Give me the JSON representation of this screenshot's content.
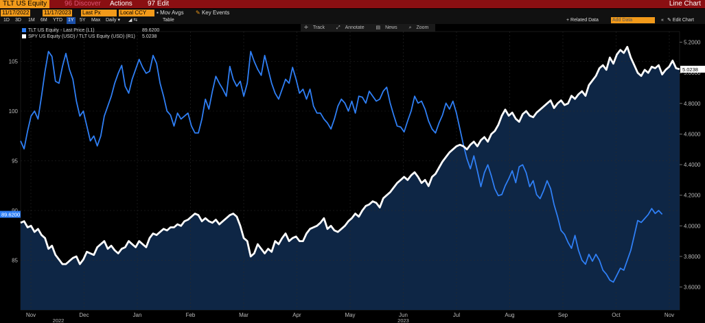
{
  "header": {
    "ticker": "TLT US Equity",
    "menus": [
      "96 Discover",
      "Actions",
      "97 Edit"
    ],
    "right_title": "Line Chart"
  },
  "controls": {
    "start_date": "11/17/2022",
    "end_date": "11/17/2023",
    "price_field": "Last Px",
    "currency": "Local CCY",
    "mov_avgs": "Mov Avgs",
    "key_events": "Key Events",
    "periods": [
      "1D",
      "3D",
      "1M",
      "6M",
      "YTD",
      "1Y",
      "5Y",
      "Max"
    ],
    "selected_period": "1Y",
    "frequency": "Daily",
    "table": "Table",
    "related_data": "+ Related Data",
    "add_data_placeholder": "Add Data",
    "edit_chart": "Edit Chart"
  },
  "toolbar": {
    "track": "Track",
    "annotate": "Annotate",
    "news": "News",
    "zoom": "Zoom"
  },
  "colors": {
    "tlt": "#2f7ff5",
    "ratio": "#ffffff",
    "area": "#0e2645",
    "background": "#000000",
    "header": "#8a0f12",
    "accent": "#f29a1a"
  },
  "chart_data": {
    "type": "line",
    "x_labels": [
      "Nov",
      "Dec",
      "Jan",
      "Feb",
      "Mar",
      "Apr",
      "May",
      "Jun",
      "Jul",
      "Aug",
      "Sep",
      "Oct",
      "Nov"
    ],
    "year_labels": [
      {
        "text": "2022",
        "month_index": 0
      },
      {
        "text": "2023",
        "month_index": 7
      }
    ],
    "left_axis": {
      "ylim": [
        80,
        108
      ],
      "ticks": [
        85,
        90,
        95,
        100,
        105
      ]
    },
    "right_axis": {
      "ylim": [
        3.45,
        5.27
      ],
      "ticks": [
        3.6,
        3.8,
        4.0,
        4.2,
        4.4,
        4.6,
        4.8,
        5.0,
        5.2
      ]
    },
    "series": [
      {
        "name": "TLT US Equity - Last Price (L1)",
        "axis": "left",
        "last_value": "89.6200",
        "values": [
          97,
          96.2,
          98,
          99.5,
          100,
          99.2,
          101.5,
          104,
          106,
          105.5,
          103,
          102.8,
          104.5,
          105.8,
          104.2,
          103.2,
          101,
          99.5,
          100,
          98.5,
          97,
          97.5,
          96.5,
          97.5,
          99.5,
          100.5,
          101.5,
          102.8,
          103.8,
          104.6,
          102.5,
          101.8,
          103.2,
          104.2,
          105.2,
          104.4,
          103.8,
          104,
          105.6,
          104.8,
          102.8,
          101.5,
          100,
          99.6,
          98.5,
          99.8,
          99.2,
          99.5,
          99.8,
          98.5,
          97.8,
          97.8,
          99.2,
          101.2,
          100.2,
          102,
          103.5,
          102.8,
          102.2,
          101.5,
          104.5,
          103.2,
          102.5,
          103,
          101.5,
          102.8,
          106,
          105,
          104.2,
          103.6,
          105.6,
          104.2,
          102.8,
          101.8,
          101.2,
          102.2,
          103.2,
          102.8,
          104.4,
          103.2,
          101.8,
          102.2,
          101.2,
          102.2,
          100.5,
          99.8,
          99.8,
          99.2,
          98.8,
          98.2,
          99.2,
          100.5,
          101.2,
          100.8,
          100,
          101,
          99.8,
          101.5,
          101.4,
          100.8,
          102,
          101.5,
          101,
          101.2,
          102,
          102.4,
          100.8,
          99.6,
          98.5,
          98.4,
          97.9,
          99,
          100,
          101.5,
          100.8,
          101,
          100.2,
          99,
          98.2,
          97.8,
          98.8,
          99.6,
          100.8,
          100.2,
          101,
          99.8,
          98.2,
          96.6,
          95.2,
          94.2,
          95.5,
          94,
          92.4,
          93.8,
          94.6,
          93.5,
          92.2,
          91.5,
          91.6,
          92.5,
          93.2,
          94,
          92.8,
          94.4,
          94.6,
          93.8,
          92.4,
          93,
          91.6,
          91.2,
          92,
          93,
          92.2,
          90.6,
          89.4,
          88,
          87.6,
          86.8,
          86.2,
          87.5,
          86,
          85,
          84.6,
          85.6,
          84.9,
          85.6,
          85,
          84,
          83.6,
          83,
          82.8,
          83.5,
          84.2,
          84,
          85,
          86,
          87.5,
          89,
          88.8,
          89.2,
          89.6,
          90.2,
          89.7,
          90,
          89.62
        ]
      },
      {
        "name": "SPY US Equity (USD) / TLT US Equity (USD) (R1)",
        "axis": "right",
        "last_value": "5.0238",
        "values": [
          4.02,
          4.03,
          3.99,
          4.0,
          3.96,
          3.98,
          3.94,
          3.92,
          3.85,
          3.87,
          3.81,
          3.78,
          3.75,
          3.75,
          3.77,
          3.79,
          3.8,
          3.75,
          3.78,
          3.83,
          3.82,
          3.81,
          3.86,
          3.88,
          3.9,
          3.85,
          3.87,
          3.84,
          3.82,
          3.85,
          3.86,
          3.9,
          3.88,
          3.86,
          3.9,
          3.88,
          3.86,
          3.92,
          3.95,
          3.94,
          3.96,
          3.98,
          3.97,
          3.99,
          3.99,
          4.01,
          4.0,
          4.03,
          4.04,
          4.06,
          4.08,
          4.07,
          4.03,
          4.05,
          4.03,
          4.02,
          4.04,
          4.01,
          4.03,
          4.05,
          4.07,
          4.08,
          4.06,
          4.0,
          3.92,
          3.9,
          3.8,
          3.82,
          3.88,
          3.85,
          3.82,
          3.85,
          3.83,
          3.9,
          3.88,
          3.92,
          3.95,
          3.9,
          3.92,
          3.93,
          3.9,
          3.9,
          3.95,
          3.98,
          3.99,
          4.0,
          4.02,
          4.05,
          3.98,
          4.0,
          3.97,
          3.96,
          3.98,
          4.0,
          4.03,
          4.05,
          4.08,
          4.06,
          4.1,
          4.13,
          4.14,
          4.16,
          4.15,
          4.12,
          4.18,
          4.2,
          4.22,
          4.25,
          4.28,
          4.3,
          4.32,
          4.3,
          4.33,
          4.35,
          4.32,
          4.28,
          4.3,
          4.26,
          4.32,
          4.34,
          4.38,
          4.42,
          4.45,
          4.48,
          4.5,
          4.52,
          4.53,
          4.52,
          4.5,
          4.53,
          4.55,
          4.52,
          4.56,
          4.58,
          4.55,
          4.6,
          4.62,
          4.66,
          4.72,
          4.76,
          4.72,
          4.74,
          4.7,
          4.68,
          4.73,
          4.75,
          4.72,
          4.71,
          4.74,
          4.76,
          4.78,
          4.8,
          4.82,
          4.77,
          4.8,
          4.82,
          4.79,
          4.8,
          4.85,
          4.83,
          4.86,
          4.88,
          4.85,
          4.92,
          4.95,
          4.98,
          5.03,
          5.05,
          5.02,
          5.1,
          5.06,
          5.12,
          5.15,
          5.13,
          5.17,
          5.1,
          5.05,
          5.0,
          4.98,
          5.02,
          5.0,
          5.04,
          5.03,
          5.05,
          4.99,
          5.02,
          5.04,
          5.08,
          5.03,
          5.0238
        ]
      }
    ]
  }
}
